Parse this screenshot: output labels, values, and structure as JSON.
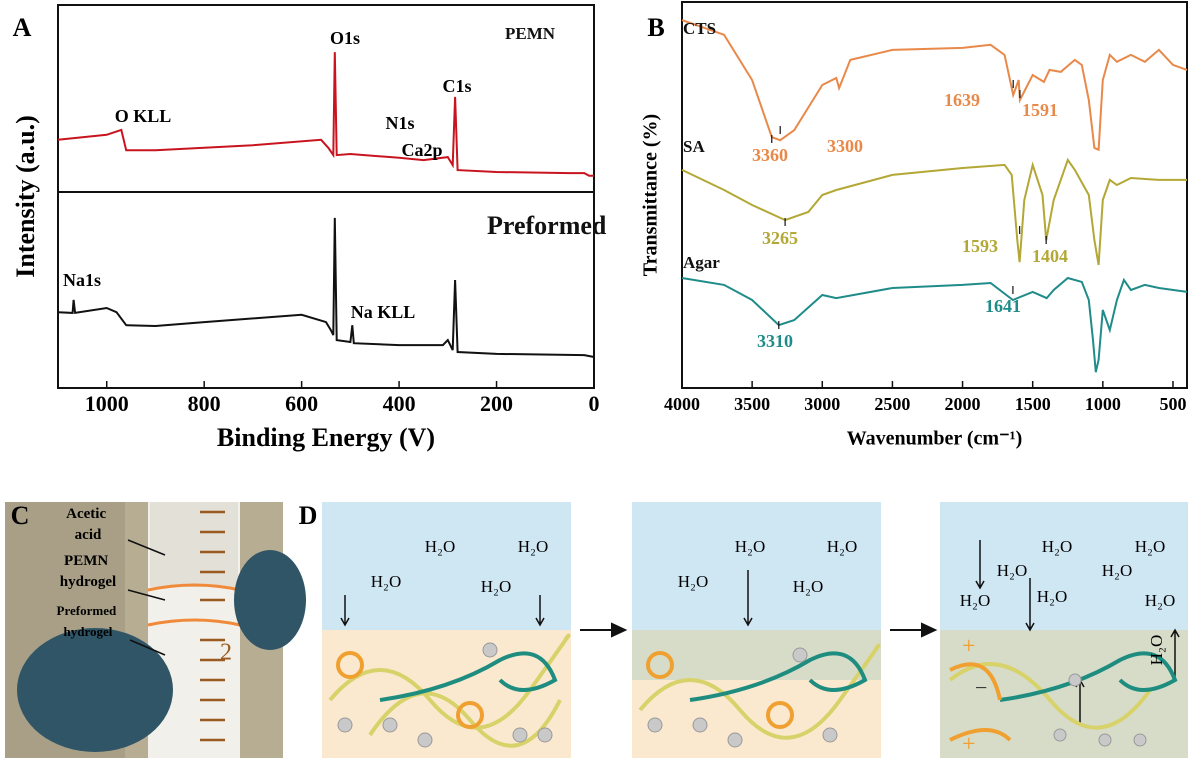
{
  "chart_data": [
    {
      "type": "line",
      "label": "A",
      "xlabel": "Binding Energy (V)",
      "ylabel": "Intensity (a.u.)",
      "xlim": [
        1100,
        0
      ],
      "ylim": [
        0,
        100
      ],
      "xticks": [
        1000,
        800,
        600,
        400,
        200,
        0
      ],
      "series": [
        {
          "name": "PEMN",
          "color": "#c8141e",
          "x": [
            1100,
            1000,
            970,
            960,
            900,
            700,
            560,
            545,
            535,
            532,
            528,
            500,
            400,
            350,
            300,
            290,
            285,
            280,
            200,
            50,
            20,
            10,
            0
          ],
          "values": [
            64.8,
            66.1,
            67.4,
            62.1,
            62.1,
            63.4,
            64.8,
            62.7,
            60.8,
            87.7,
            60.8,
            61.1,
            60.1,
            59.5,
            60.3,
            58.2,
            76.0,
            56.9,
            56.4,
            56.1,
            56.1,
            55.4,
            55.4
          ]
        },
        {
          "name": "Preformed",
          "color": "#111111",
          "x": [
            1100,
            1070,
            1068,
            1065,
            1000,
            980,
            960,
            900,
            800,
            600,
            550,
            540,
            535,
            532,
            528,
            500,
            496,
            493,
            400,
            310,
            300,
            290,
            285,
            280,
            200,
            20,
            0
          ],
          "values": [
            19.8,
            19.6,
            23.0,
            19.6,
            20.9,
            19.8,
            16.4,
            16.2,
            17.2,
            19.1,
            17.2,
            15.1,
            13.8,
            44.4,
            12.5,
            12.0,
            16.4,
            11.7,
            11.2,
            11.2,
            12.5,
            9.9,
            28.2,
            9.4,
            8.9,
            8.6,
            8.1
          ]
        }
      ],
      "annotations": [
        "O KLL",
        "O1s",
        "N1s",
        "Ca2p",
        "C1s",
        "Na1s",
        "Na KLL"
      ]
    },
    {
      "type": "line",
      "label": "B",
      "xlabel": "Wavenumber (cm⁻¹)",
      "ylabel": "Transmittance (%)",
      "xlim": [
        4000,
        400
      ],
      "ylim": [
        0,
        100
      ],
      "xticks": [
        4000,
        3500,
        3000,
        2500,
        2000,
        1500,
        1000,
        500
      ],
      "series": [
        {
          "name": "CTS",
          "color": "#e8894a",
          "peaks": [
            3360,
            3300,
            1639,
            1591
          ],
          "x": [
            4000,
            3700,
            3500,
            3360,
            3300,
            3200,
            3000,
            2900,
            2880,
            2800,
            2500,
            2000,
            1800,
            1700,
            1639,
            1600,
            1591,
            1500,
            1420,
            1380,
            1300,
            1200,
            1150,
            1100,
            1060,
            1030,
            1000,
            950,
            900,
            800,
            700,
            600,
            500,
            400
          ],
          "values": [
            95.3,
            91.5,
            79.8,
            65.0,
            64.2,
            66.8,
            78.5,
            80.3,
            77.7,
            85.0,
            87.6,
            88.1,
            88.9,
            86.3,
            75.9,
            79.8,
            74.6,
            81.1,
            79.3,
            82.4,
            81.9,
            85.0,
            83.7,
            74.6,
            62.2,
            61.7,
            79.8,
            86.3,
            84.5,
            86.3,
            84.5,
            87.6,
            83.7,
            82.4
          ]
        },
        {
          "name": "SA",
          "color": "#b3a735",
          "peaks": [
            3265,
            1593,
            1404
          ],
          "x": [
            4000,
            3700,
            3500,
            3265,
            3100,
            3000,
            2900,
            2500,
            2000,
            1700,
            1650,
            1610,
            1593,
            1560,
            1500,
            1430,
            1404,
            1350,
            1250,
            1200,
            1100,
            1060,
            1030,
            1000,
            950,
            900,
            800,
            600,
            400
          ],
          "values": [
            56.5,
            51.3,
            47.4,
            43.5,
            45.6,
            50.0,
            51.3,
            55.2,
            57.0,
            57.8,
            55.2,
            38.3,
            32.6,
            48.7,
            57.8,
            50.0,
            38.3,
            48.7,
            59.1,
            56.5,
            50.0,
            38.3,
            31.9,
            48.7,
            53.9,
            52.6,
            54.4,
            53.9,
            53.9
          ]
        },
        {
          "name": "Agar",
          "color": "#1f8c8a",
          "peaks": [
            3310,
            1641
          ],
          "x": [
            4000,
            3700,
            3500,
            3310,
            3200,
            3000,
            2900,
            2500,
            2000,
            1800,
            1641,
            1500,
            1400,
            1350,
            1250,
            1150,
            1100,
            1070,
            1050,
            1030,
            1000,
            950,
            900,
            850,
            800,
            700,
            600,
            400
          ],
          "values": [
            28.5,
            26.7,
            22.8,
            16.3,
            17.6,
            24.1,
            23.3,
            25.9,
            26.7,
            27.2,
            22.8,
            24.9,
            23.3,
            25.4,
            28.5,
            27.5,
            22.8,
            12.4,
            4.1,
            7.3,
            20.2,
            15.0,
            22.8,
            28.0,
            25.4,
            26.7,
            25.9,
            24.9
          ]
        }
      ]
    }
  ],
  "panel_c": {
    "label": "C",
    "layers": [
      "Acetic acid",
      "PEMN hydrogel",
      "Preformed hydrogel"
    ],
    "tube_mark": "2"
  },
  "panel_d": {
    "label": "D",
    "molecule": "H₂O"
  }
}
